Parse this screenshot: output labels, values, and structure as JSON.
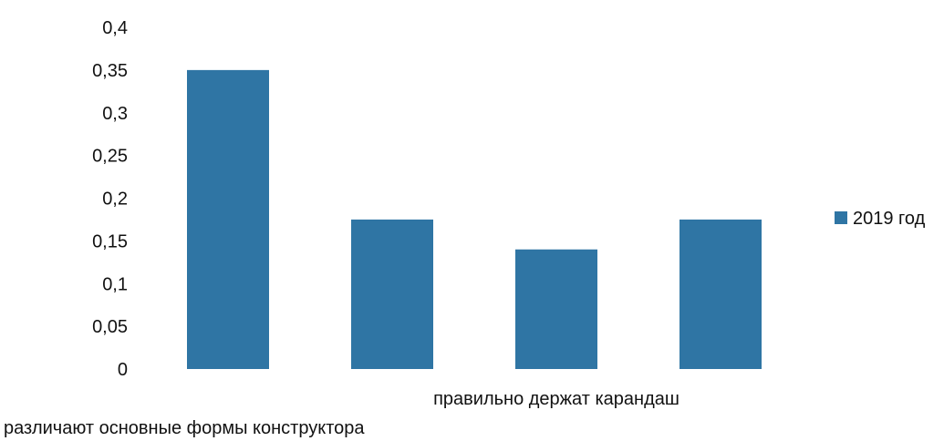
{
  "chart_data": {
    "type": "bar",
    "categories": [
      "",
      "",
      "правильно держат карандаш",
      ""
    ],
    "bottom_label": "различают основные формы конструктора",
    "series": [
      {
        "name": "2019 год",
        "values": [
          0.35,
          0.175,
          0.14,
          0.175
        ]
      }
    ],
    "ylim": [
      0,
      0.4
    ],
    "yticks": [
      "0",
      "0,05",
      "0,1",
      "0,15",
      "0,2",
      "0,25",
      "0,3",
      "0,35",
      "0,4"
    ],
    "grid": false,
    "legend_position": "right",
    "colors": {
      "bar": "#2F75A4"
    }
  }
}
